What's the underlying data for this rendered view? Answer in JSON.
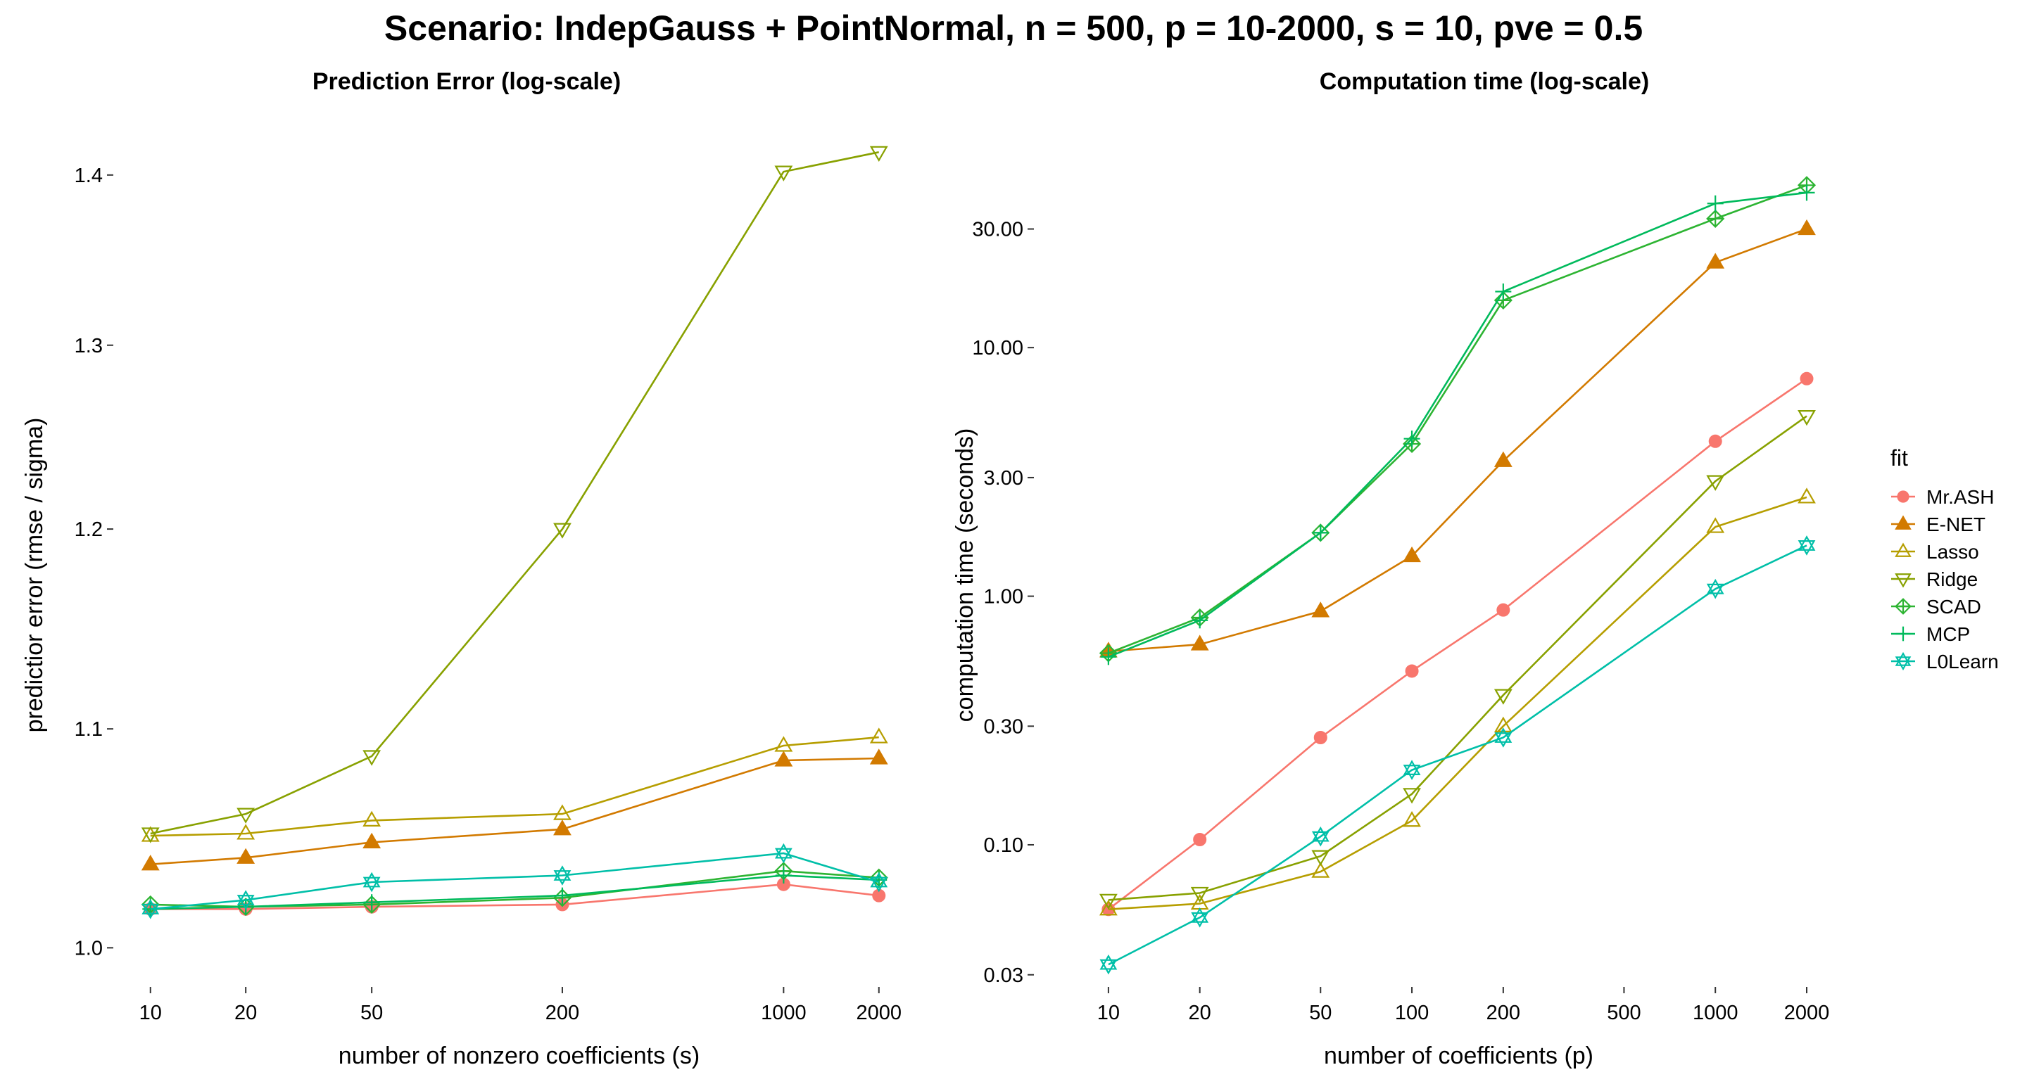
{
  "title": "Scenario: IndepGauss + PointNormal, n = 500, p = 10-2000, s = 10, pve = 0.5",
  "legend": {
    "title": "fit",
    "entries": [
      {
        "name": "Mr.ASH",
        "color": "#F8766D",
        "shape": "circle"
      },
      {
        "name": "E-NET",
        "color": "#D27A00",
        "shape": "triangle-filled"
      },
      {
        "name": "Lasso",
        "color": "#B69E00",
        "shape": "triangle-open"
      },
      {
        "name": "Ridge",
        "color": "#88A100",
        "shape": "triangle-down-open"
      },
      {
        "name": "SCAD",
        "color": "#2DB432",
        "shape": "diamond-plus"
      },
      {
        "name": "MCP",
        "color": "#00BA5C",
        "shape": "plus"
      },
      {
        "name": "L0Learn",
        "color": "#00BFA8",
        "shape": "star6"
      }
    ]
  },
  "chart_data": [
    {
      "type": "line",
      "title": "Prediction Error (log-scale)",
      "xlabel": "number of nonzero coefficients (s)",
      "ylabel": "predictior error (rmse / sigma)",
      "x_scale": "log",
      "y_scale": "log",
      "x": [
        10,
        20,
        50,
        200,
        1000,
        2000
      ],
      "x_ticks": [
        10,
        20,
        50,
        200,
        1000,
        2000
      ],
      "x_tick_labels": [
        "10",
        "20",
        "50",
        "200",
        "1000",
        "2000"
      ],
      "y_ticks": [
        1.0,
        1.1,
        1.2,
        1.3,
        1.4
      ],
      "y_tick_labels": [
        "1.0",
        "1.1",
        "1.2",
        "1.3",
        "1.4"
      ],
      "xlim": [
        8.2,
        2600
      ],
      "ylim": [
        0.978,
        1.432
      ],
      "grid": false,
      "series": [
        {
          "name": "Mr.ASH",
          "values": [
            1.017,
            1.017,
            1.018,
            1.019,
            1.028,
            1.023
          ]
        },
        {
          "name": "E-NET",
          "values": [
            1.037,
            1.04,
            1.047,
            1.053,
            1.085,
            1.086
          ]
        },
        {
          "name": "Lasso",
          "values": [
            1.05,
            1.051,
            1.057,
            1.06,
            1.092,
            1.096
          ]
        },
        {
          "name": "Ridge",
          "values": [
            1.051,
            1.06,
            1.087,
            1.2,
            1.402,
            1.414
          ]
        },
        {
          "name": "SCAD",
          "values": [
            1.019,
            1.018,
            1.019,
            1.022,
            1.034,
            1.031
          ]
        },
        {
          "name": "MCP",
          "values": [
            1.017,
            1.018,
            1.02,
            1.023,
            1.032,
            1.03
          ]
        },
        {
          "name": "L0Learn",
          "values": [
            1.017,
            1.021,
            1.029,
            1.032,
            1.042,
            1.029
          ]
        }
      ]
    },
    {
      "type": "line",
      "title": "Computation time (log-scale)",
      "xlabel": "number of coefficients (p)",
      "ylabel": "computation time (seconds)",
      "x_scale": "log",
      "y_scale": "log",
      "x": [
        10,
        20,
        50,
        100,
        200,
        1000,
        2000
      ],
      "x_ticks": [
        10,
        20,
        50,
        100,
        200,
        500,
        1000,
        2000
      ],
      "x_tick_labels": [
        "10",
        "20",
        "50",
        "100",
        "200",
        "500",
        "1000",
        "2000"
      ],
      "y_ticks": [
        0.03,
        0.1,
        0.3,
        1,
        3,
        10,
        30
      ],
      "y_tick_labels": [
        "0.03",
        "0.10",
        "0.30",
        "1.00",
        "3.00",
        "10.00",
        "30.00"
      ],
      "xlim": [
        8.3,
        2450
      ],
      "ylim": [
        0.024,
        80
      ],
      "grid": false,
      "series": [
        {
          "name": "Mr.ASH",
          "values": [
            0.055,
            0.105,
            0.27,
            0.5,
            0.88,
            4.2,
            7.5
          ]
        },
        {
          "name": "E-NET",
          "values": [
            0.6,
            0.64,
            0.87,
            1.45,
            3.5,
            22,
            30
          ]
        },
        {
          "name": "Lasso",
          "values": [
            0.055,
            0.058,
            0.078,
            0.125,
            0.3,
            1.9,
            2.5
          ]
        },
        {
          "name": "Ridge",
          "values": [
            0.06,
            0.064,
            0.09,
            0.16,
            0.4,
            2.9,
            5.3
          ]
        },
        {
          "name": "SCAD",
          "values": [
            0.59,
            0.82,
            1.8,
            4.1,
            15.5,
            33,
            45
          ]
        },
        {
          "name": "MCP",
          "values": [
            0.57,
            0.8,
            1.8,
            4.3,
            16.8,
            38,
            42
          ]
        },
        {
          "name": "L0Learn",
          "values": [
            0.033,
            0.051,
            0.108,
            0.2,
            0.27,
            1.07,
            1.6
          ]
        }
      ]
    }
  ]
}
